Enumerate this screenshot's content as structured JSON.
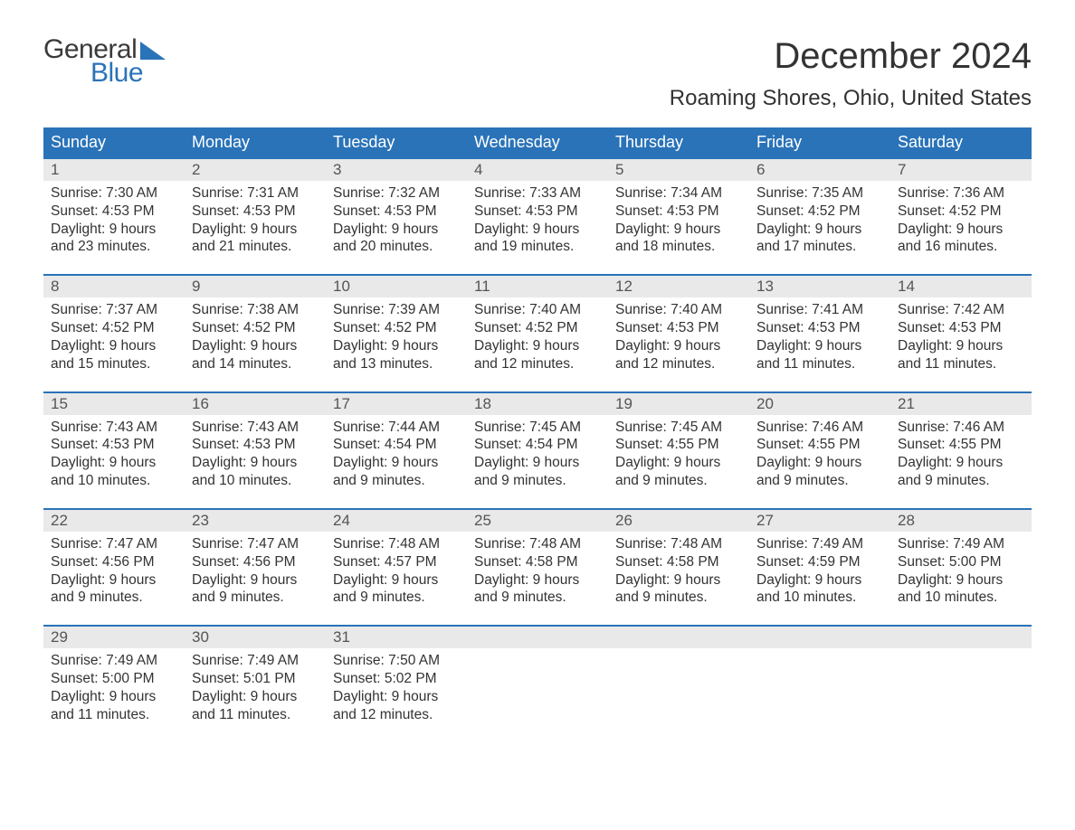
{
  "logo": {
    "text_top": "General",
    "text_bottom": "Blue",
    "triangle_color": "#2a73b8"
  },
  "title": "December 2024",
  "location": "Roaming Shores, Ohio, United States",
  "colors": {
    "header_bg": "#2a73b8",
    "header_text": "#ffffff",
    "daynum_bg": "#e9e9e9",
    "week_border": "#2a73b8",
    "body_text": "#333333",
    "page_bg": "#ffffff"
  },
  "weekdays": [
    "Sunday",
    "Monday",
    "Tuesday",
    "Wednesday",
    "Thursday",
    "Friday",
    "Saturday"
  ],
  "weeks": [
    [
      {
        "n": "1",
        "sunrise": "7:30 AM",
        "sunset": "4:53 PM",
        "daylight": "9 hours and 23 minutes."
      },
      {
        "n": "2",
        "sunrise": "7:31 AM",
        "sunset": "4:53 PM",
        "daylight": "9 hours and 21 minutes."
      },
      {
        "n": "3",
        "sunrise": "7:32 AM",
        "sunset": "4:53 PM",
        "daylight": "9 hours and 20 minutes."
      },
      {
        "n": "4",
        "sunrise": "7:33 AM",
        "sunset": "4:53 PM",
        "daylight": "9 hours and 19 minutes."
      },
      {
        "n": "5",
        "sunrise": "7:34 AM",
        "sunset": "4:53 PM",
        "daylight": "9 hours and 18 minutes."
      },
      {
        "n": "6",
        "sunrise": "7:35 AM",
        "sunset": "4:52 PM",
        "daylight": "9 hours and 17 minutes."
      },
      {
        "n": "7",
        "sunrise": "7:36 AM",
        "sunset": "4:52 PM",
        "daylight": "9 hours and 16 minutes."
      }
    ],
    [
      {
        "n": "8",
        "sunrise": "7:37 AM",
        "sunset": "4:52 PM",
        "daylight": "9 hours and 15 minutes."
      },
      {
        "n": "9",
        "sunrise": "7:38 AM",
        "sunset": "4:52 PM",
        "daylight": "9 hours and 14 minutes."
      },
      {
        "n": "10",
        "sunrise": "7:39 AM",
        "sunset": "4:52 PM",
        "daylight": "9 hours and 13 minutes."
      },
      {
        "n": "11",
        "sunrise": "7:40 AM",
        "sunset": "4:52 PM",
        "daylight": "9 hours and 12 minutes."
      },
      {
        "n": "12",
        "sunrise": "7:40 AM",
        "sunset": "4:53 PM",
        "daylight": "9 hours and 12 minutes."
      },
      {
        "n": "13",
        "sunrise": "7:41 AM",
        "sunset": "4:53 PM",
        "daylight": "9 hours and 11 minutes."
      },
      {
        "n": "14",
        "sunrise": "7:42 AM",
        "sunset": "4:53 PM",
        "daylight": "9 hours and 11 minutes."
      }
    ],
    [
      {
        "n": "15",
        "sunrise": "7:43 AM",
        "sunset": "4:53 PM",
        "daylight": "9 hours and 10 minutes."
      },
      {
        "n": "16",
        "sunrise": "7:43 AM",
        "sunset": "4:53 PM",
        "daylight": "9 hours and 10 minutes."
      },
      {
        "n": "17",
        "sunrise": "7:44 AM",
        "sunset": "4:54 PM",
        "daylight": "9 hours and 9 minutes."
      },
      {
        "n": "18",
        "sunrise": "7:45 AM",
        "sunset": "4:54 PM",
        "daylight": "9 hours and 9 minutes."
      },
      {
        "n": "19",
        "sunrise": "7:45 AM",
        "sunset": "4:55 PM",
        "daylight": "9 hours and 9 minutes."
      },
      {
        "n": "20",
        "sunrise": "7:46 AM",
        "sunset": "4:55 PM",
        "daylight": "9 hours and 9 minutes."
      },
      {
        "n": "21",
        "sunrise": "7:46 AM",
        "sunset": "4:55 PM",
        "daylight": "9 hours and 9 minutes."
      }
    ],
    [
      {
        "n": "22",
        "sunrise": "7:47 AM",
        "sunset": "4:56 PM",
        "daylight": "9 hours and 9 minutes."
      },
      {
        "n": "23",
        "sunrise": "7:47 AM",
        "sunset": "4:56 PM",
        "daylight": "9 hours and 9 minutes."
      },
      {
        "n": "24",
        "sunrise": "7:48 AM",
        "sunset": "4:57 PM",
        "daylight": "9 hours and 9 minutes."
      },
      {
        "n": "25",
        "sunrise": "7:48 AM",
        "sunset": "4:58 PM",
        "daylight": "9 hours and 9 minutes."
      },
      {
        "n": "26",
        "sunrise": "7:48 AM",
        "sunset": "4:58 PM",
        "daylight": "9 hours and 9 minutes."
      },
      {
        "n": "27",
        "sunrise": "7:49 AM",
        "sunset": "4:59 PM",
        "daylight": "9 hours and 10 minutes."
      },
      {
        "n": "28",
        "sunrise": "7:49 AM",
        "sunset": "5:00 PM",
        "daylight": "9 hours and 10 minutes."
      }
    ],
    [
      {
        "n": "29",
        "sunrise": "7:49 AM",
        "sunset": "5:00 PM",
        "daylight": "9 hours and 11 minutes."
      },
      {
        "n": "30",
        "sunrise": "7:49 AM",
        "sunset": "5:01 PM",
        "daylight": "9 hours and 11 minutes."
      },
      {
        "n": "31",
        "sunrise": "7:50 AM",
        "sunset": "5:02 PM",
        "daylight": "9 hours and 12 minutes."
      },
      null,
      null,
      null,
      null
    ]
  ],
  "labels": {
    "sunrise": "Sunrise: ",
    "sunset": "Sunset: ",
    "daylight": "Daylight: "
  }
}
